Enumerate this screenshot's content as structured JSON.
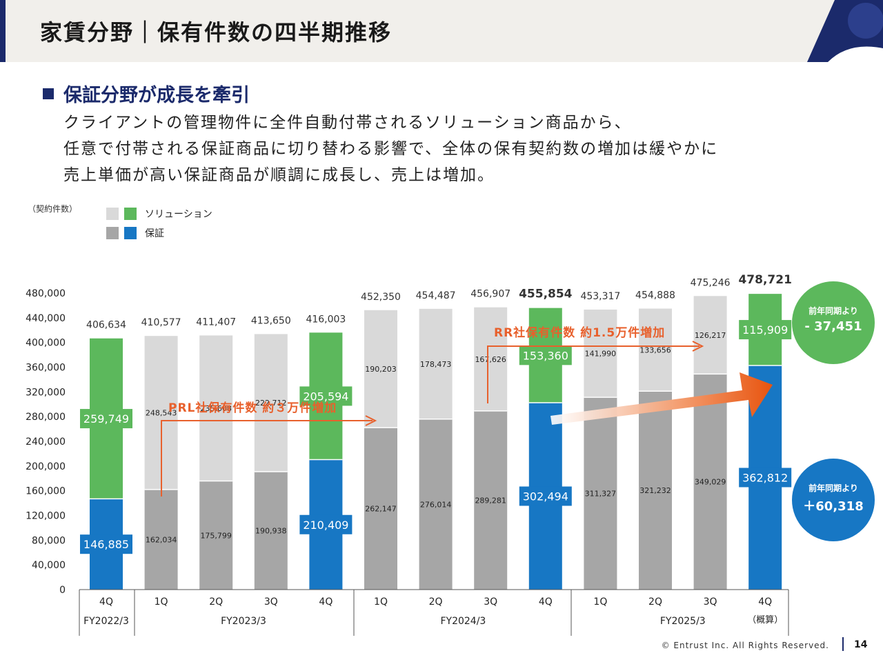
{
  "page": {
    "title": "家賃分野｜保有件数の四半期推移",
    "subheading": "保証分野が成長を牽引",
    "description": [
      "クライアントの管理物件に全件自動付帯されるソリューション商品から、",
      "任意で付帯される保証商品に切り替わる影響で、全体の保有契約数の増加は緩やかに",
      "売上単価が高い保証商品が順調に成長し、売上は増加。"
    ],
    "footer": "© Entrust Inc. All Rights Reserved.",
    "page_number": "14"
  },
  "colors": {
    "navy": "#1b2a6b",
    "guarantee_blue": "#1777c4",
    "solution_green": "#5cb85c",
    "guarantee_gray": "#a6a6a6",
    "solution_gray": "#d9d9d9",
    "annotation_orange": "#e8602c"
  },
  "chart_data": {
    "type": "bar",
    "stacked": true,
    "ylabel": "（契約件数）",
    "ylim": [
      0,
      480000
    ],
    "yticks": [
      "0",
      "40,000",
      "80,000",
      "120,000",
      "160,000",
      "200,000",
      "240,000",
      "280,000",
      "320,000",
      "360,000",
      "400,000",
      "440,000",
      "480,000"
    ],
    "grid": false,
    "legend_position": "top-left",
    "legend": [
      {
        "label": "ソリューション",
        "colors": [
          "#d9d9d9",
          "#5cb85c"
        ]
      },
      {
        "label": "保証",
        "colors": [
          "#a6a6a6",
          "#1777c4"
        ]
      }
    ],
    "categories": [
      "4Q",
      "1Q",
      "2Q",
      "3Q",
      "4Q",
      "1Q",
      "2Q",
      "3Q",
      "4Q",
      "1Q",
      "2Q",
      "3Q",
      "4Q"
    ],
    "fiscal_years": [
      {
        "label": "FY2022/3",
        "start": 0,
        "end": 0
      },
      {
        "label": "FY2023/3",
        "start": 1,
        "end": 4
      },
      {
        "label": "FY2024/3",
        "start": 5,
        "end": 8
      },
      {
        "label": "FY2025/3",
        "start": 9,
        "end": 12
      }
    ],
    "final_note": "（概算）",
    "highlight": [
      0,
      4,
      8,
      12
    ],
    "series": [
      {
        "name": "保証",
        "values": [
          146885,
          162034,
          175799,
          190938,
          210409,
          262147,
          276014,
          289281,
          302494,
          311327,
          321232,
          349029,
          362812
        ],
        "labels": [
          "146,885",
          "162,034",
          "175,799",
          "190,938",
          "210,409",
          "262,147",
          "276,014",
          "289,281",
          "302,494",
          "311,327",
          "321,232",
          "349,029",
          "362,812"
        ]
      },
      {
        "name": "ソリューション",
        "values": [
          259749,
          248543,
          235608,
          222712,
          205594,
          190203,
          178473,
          167626,
          153360,
          141990,
          133656,
          126217,
          115909
        ],
        "labels": [
          "259,749",
          "248,543",
          "235,608",
          "222,712",
          "205,594",
          "190,203",
          "178,473",
          "167,626",
          "153,360",
          "141,990",
          "133,656",
          "126,217",
          "115,909"
        ]
      }
    ],
    "totals": [
      "406,634",
      "410,577",
      "411,407",
      "413,650",
      "416,003",
      "452,350",
      "454,487",
      "456,907",
      "455,854",
      "453,317",
      "454,888",
      "475,246",
      "478,721"
    ],
    "annotations": [
      {
        "text": "PRL社保有件数  約３万件増加"
      },
      {
        "text": "RR社保有件数  約1.5万件増加"
      }
    ],
    "callouts": [
      {
        "label": "前年同期より",
        "value": "- 37,451"
      },
      {
        "label": "前年同期より",
        "value": "＋60,318"
      }
    ]
  }
}
